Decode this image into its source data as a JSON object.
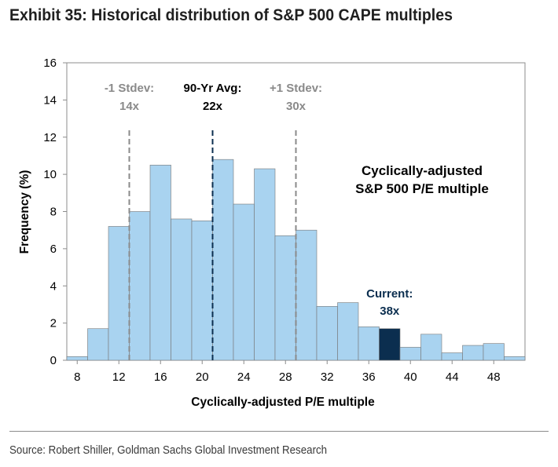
{
  "header": {
    "title": "Exhibit 35: Historical distribution of S&P 500 CAPE multiples"
  },
  "footer": {
    "source": "Source: Robert Shiller, Goldman Sachs Global Investment Research"
  },
  "colors": {
    "bar": "#a9d3f0",
    "bar_highlight": "#0b2e4f",
    "grey_text": "#8a8a8a",
    "avg_line": "#0b2e4f"
  },
  "chart_data": {
    "type": "bar",
    "title": "Cyclically-adjusted S&P 500 P/E multiple",
    "xlabel": "Cyclically-adjusted P/E multiple",
    "ylabel": "Frequency (%)",
    "xlim": [
      7,
      51
    ],
    "ylim": [
      0,
      16
    ],
    "xticks": [
      8,
      12,
      16,
      20,
      24,
      28,
      32,
      36,
      40,
      44,
      48
    ],
    "yticks": [
      0,
      2,
      4,
      6,
      8,
      10,
      12,
      14,
      16
    ],
    "bin_width": 2,
    "bins": [
      {
        "x": 8,
        "value": 0.2
      },
      {
        "x": 10,
        "value": 1.7
      },
      {
        "x": 12,
        "value": 7.2
      },
      {
        "x": 14,
        "value": 8.0
      },
      {
        "x": 16,
        "value": 10.5
      },
      {
        "x": 18,
        "value": 7.6
      },
      {
        "x": 20,
        "value": 7.5
      },
      {
        "x": 22,
        "value": 10.8
      },
      {
        "x": 24,
        "value": 8.4
      },
      {
        "x": 26,
        "value": 10.3
      },
      {
        "x": 28,
        "value": 6.7
      },
      {
        "x": 30,
        "value": 7.0
      },
      {
        "x": 32,
        "value": 2.9
      },
      {
        "x": 34,
        "value": 3.1
      },
      {
        "x": 36,
        "value": 1.8
      },
      {
        "x": 38,
        "value": 1.7,
        "highlight": true
      },
      {
        "x": 40,
        "value": 0.7
      },
      {
        "x": 42,
        "value": 1.4
      },
      {
        "x": 44,
        "value": 0.4
      },
      {
        "x": 46,
        "value": 0.8
      },
      {
        "x": 48,
        "value": 0.9
      },
      {
        "x": 50,
        "value": 0.2
      }
    ],
    "reference_lines": [
      {
        "x": 13,
        "label": [
          "-1 Stdev:",
          "14x"
        ],
        "color": "#8a8a8a"
      },
      {
        "x": 21,
        "label": [
          "90-Yr Avg:",
          "22x"
        ],
        "color": "#0b2e4f",
        "label_color": "#000000"
      },
      {
        "x": 29,
        "label": [
          "+1 Stdev:",
          "30x"
        ],
        "color": "#8a8a8a"
      }
    ],
    "annotations": [
      {
        "text": [
          "Current:",
          "38x"
        ],
        "x": 38,
        "y": 3.7,
        "color": "#0b2e4f"
      }
    ],
    "grid": false,
    "legend": "none"
  }
}
